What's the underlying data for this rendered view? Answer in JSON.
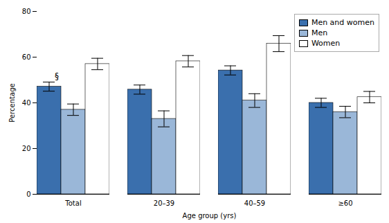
{
  "chart_data": {
    "type": "bar",
    "categories": [
      "Total",
      "20–39",
      "40–59",
      "≥60"
    ],
    "series": [
      {
        "name": "Men and women",
        "color": "#3a6fad",
        "values": [
          47.1,
          45.8,
          54.2,
          40.0
        ],
        "errors": [
          2.0,
          2.0,
          2.0,
          2.0
        ]
      },
      {
        "name": "Men",
        "color": "#9ab7d8",
        "values": [
          37.0,
          33.0,
          41.0,
          36.0
        ],
        "errors": [
          2.5,
          3.5,
          3.0,
          2.5
        ]
      },
      {
        "name": "Women",
        "color": "#ffffff",
        "values": [
          57.0,
          58.2,
          65.9,
          42.5
        ],
        "errors": [
          2.5,
          2.5,
          3.5,
          2.5
        ]
      }
    ],
    "xlabel": "Age group (yrs)",
    "ylabel": "Percentage",
    "ylim": [
      0,
      80
    ],
    "yticks": [
      0,
      20,
      40,
      60,
      80
    ],
    "grid": false,
    "legend": "upper right",
    "annotations": [
      {
        "text": "§",
        "category": "Total",
        "series": "Men and women"
      }
    ]
  }
}
